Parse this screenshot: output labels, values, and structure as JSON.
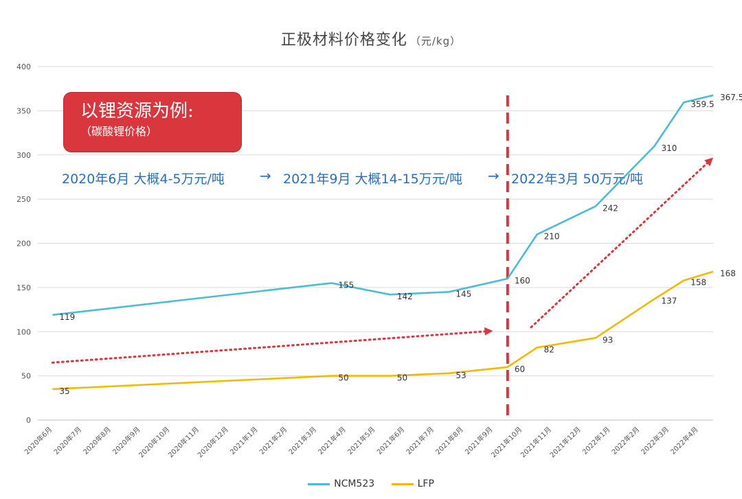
{
  "title": "正极材料价格变化",
  "unit": "（元/kg）",
  "callout": {
    "title": "以锂资源为例:",
    "subtitle": "（碳酸锂价格）"
  },
  "price_notes": [
    "2020年6月 大概4-5万元/吨",
    "2021年9月 大概14-15万元/吨",
    "2022年3月 50万元/吨"
  ],
  "arrow_glyph": "→",
  "legend": [
    "NCM523",
    "LFP"
  ],
  "colors": {
    "ncm": "#4bbcd6",
    "lfp": "#f5b800",
    "red": "#d9363e",
    "grid": "#d9d9d9"
  },
  "chart_data": {
    "type": "line",
    "title": "正极材料价格变化（元/kg）",
    "xlabel": "",
    "ylabel": "",
    "ylim": [
      0,
      400
    ],
    "yticks": [
      0,
      50,
      100,
      150,
      200,
      250,
      300,
      350,
      400
    ],
    "categories": [
      "2020年6月",
      "2020年7月",
      "2020年8月",
      "2020年9月",
      "2020年10月",
      "2020年11月",
      "2020年12月",
      "2021年1月",
      "2021年2月",
      "2021年3月",
      "2021年4月",
      "2021年5月",
      "2021年6月",
      "2021年7月",
      "2021年8月",
      "2021年9月",
      "2021年10月",
      "2021年11月",
      "2021年12月",
      "2022年1月",
      "2022年2月",
      "2022年3月",
      "2022年4月"
    ],
    "series": [
      {
        "name": "NCM523",
        "points": [
          [
            0,
            119
          ],
          [
            9.5,
            155
          ],
          [
            11.5,
            142
          ],
          [
            13.5,
            145
          ],
          [
            15.5,
            160
          ],
          [
            16.5,
            210
          ],
          [
            18.5,
            242
          ],
          [
            20.5,
            310
          ],
          [
            21.5,
            359.5
          ],
          [
            22.5,
            367.5
          ]
        ],
        "labels": [
          [
            "119",
            0
          ],
          [
            "155",
            1
          ],
          [
            "142",
            2
          ],
          [
            "145",
            3
          ],
          [
            "160",
            4
          ],
          [
            "210",
            5
          ],
          [
            "242",
            6
          ],
          [
            "310",
            7
          ],
          [
            "359.5",
            8
          ],
          [
            "367.5",
            9
          ]
        ]
      },
      {
        "name": "LFP",
        "points": [
          [
            0,
            35
          ],
          [
            9.5,
            50
          ],
          [
            11.5,
            50
          ],
          [
            13.5,
            53
          ],
          [
            15.5,
            60
          ],
          [
            16.5,
            82
          ],
          [
            18.5,
            93
          ],
          [
            20.5,
            137
          ],
          [
            21.5,
            158
          ],
          [
            22.5,
            168
          ]
        ],
        "labels": [
          [
            "35",
            0
          ],
          [
            "50",
            1
          ],
          [
            "50",
            2
          ],
          [
            "53",
            3
          ],
          [
            "60",
            4
          ],
          [
            "82",
            5
          ],
          [
            "93",
            6
          ],
          [
            "137",
            7
          ],
          [
            "158",
            8
          ],
          [
            "168",
            9
          ]
        ]
      }
    ],
    "annotations": {
      "vertical_divider_at": 15.5,
      "trend_arrows": [
        {
          "from": [
            0,
            65
          ],
          "to": [
            15,
            101
          ]
        },
        {
          "from": [
            16.3,
            105
          ],
          "to": [
            22.5,
            297
          ]
        }
      ]
    }
  }
}
